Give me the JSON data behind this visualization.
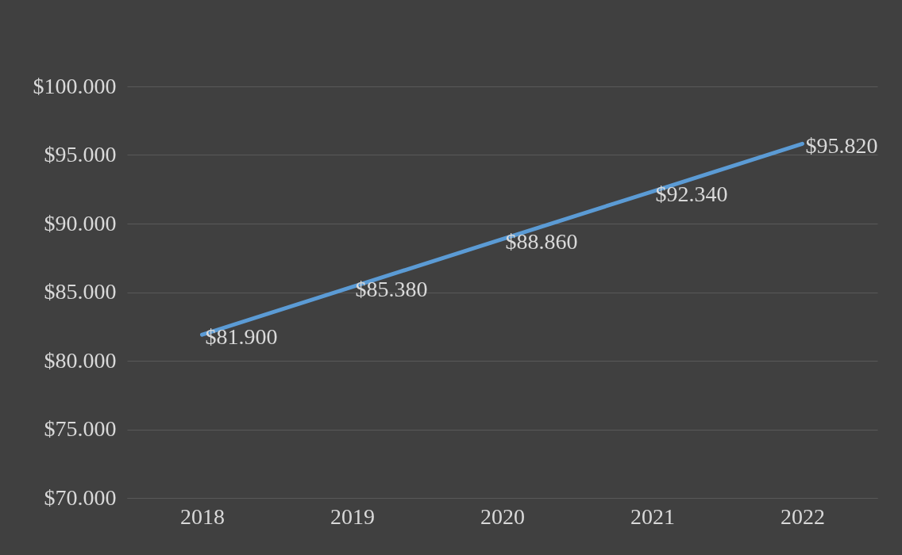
{
  "chart_data": {
    "type": "line",
    "categories": [
      "2018",
      "2019",
      "2020",
      "2021",
      "2022"
    ],
    "series": [
      {
        "color": "#5b9bd5",
        "values": [
          81900,
          85380,
          88860,
          92340,
          95820
        ]
      }
    ],
    "value_labels": [
      "$81.900",
      "$85.380",
      "$88.860",
      "$92.340",
      "$95.820"
    ],
    "ylim": [
      70000,
      100000
    ],
    "yticks": [
      {
        "value": 70000,
        "label": "$70.000"
      },
      {
        "value": 75000,
        "label": "$75.000"
      },
      {
        "value": 80000,
        "label": "$80.000"
      },
      {
        "value": 85000,
        "label": "$85.000"
      },
      {
        "value": 90000,
        "label": "$90.000"
      },
      {
        "value": 95000,
        "label": "$95.000"
      },
      {
        "value": 100000,
        "label": "$100.000"
      }
    ],
    "grid": "y"
  }
}
